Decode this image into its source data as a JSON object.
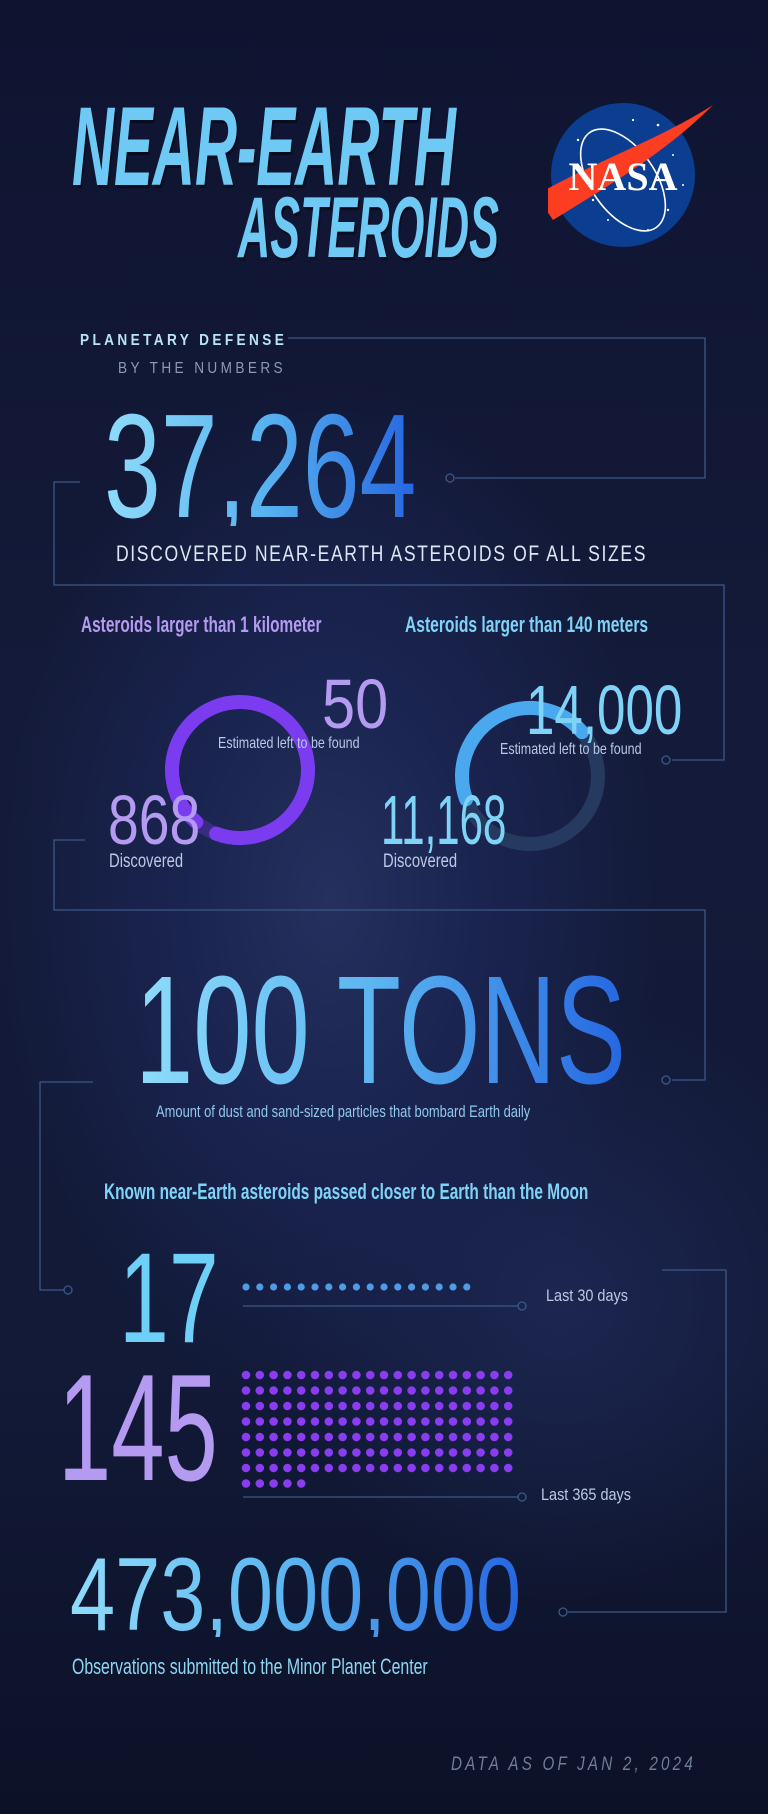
{
  "header": {
    "title_line1": "NEAR-EARTH",
    "title_line2": "ASTEROIDS",
    "logo_text": "NASA"
  },
  "intro": {
    "kicker": "PLANETARY DEFENSE",
    "subkicker": "BY THE NUMBERS"
  },
  "total": {
    "value": "37,264",
    "caption": "DISCOVERED NEAR-EARTH ASTEROIDS OF ALL SIZES"
  },
  "rings": [
    {
      "heading": "Asteroids larger than 1 kilometer",
      "remaining": "50",
      "remaining_label": "Estimated left to be found",
      "discovered": "868",
      "discovered_label": "Discovered",
      "discovered_value": 868,
      "remaining_value": 50,
      "color": "#7b3cf0",
      "text_color": "#b49af0"
    },
    {
      "heading": "Asteroids larger than 140 meters",
      "remaining": "14,000",
      "remaining_label": "Estimated left to be found",
      "discovered": "11,168",
      "discovered_label": "Discovered",
      "discovered_value": 11168,
      "remaining_value": 14000,
      "color": "#4aa8ee",
      "text_color": "#7fd3f7"
    }
  ],
  "dust": {
    "value": "100 TONS",
    "ghost": "100",
    "caption": "Amount of dust and sand-sized particles that bombard Earth daily"
  },
  "flybys": {
    "heading": "Known near-Earth asteroids passed closer to Earth than the Moon",
    "items": [
      {
        "value": "17",
        "count": 17,
        "label": "Last 30 days",
        "color": "#4f9be8",
        "text_color": "#6fd0f7"
      },
      {
        "value": "145",
        "count": 145,
        "label": "Last 365 days",
        "color": "#8a3cf0",
        "text_color": "#b49af0"
      }
    ]
  },
  "observations": {
    "value": "473,000,000",
    "caption": "Observations submitted to the Minor Planet Center"
  },
  "footer": {
    "date_note": "DATA AS OF JAN  2, 2024"
  }
}
